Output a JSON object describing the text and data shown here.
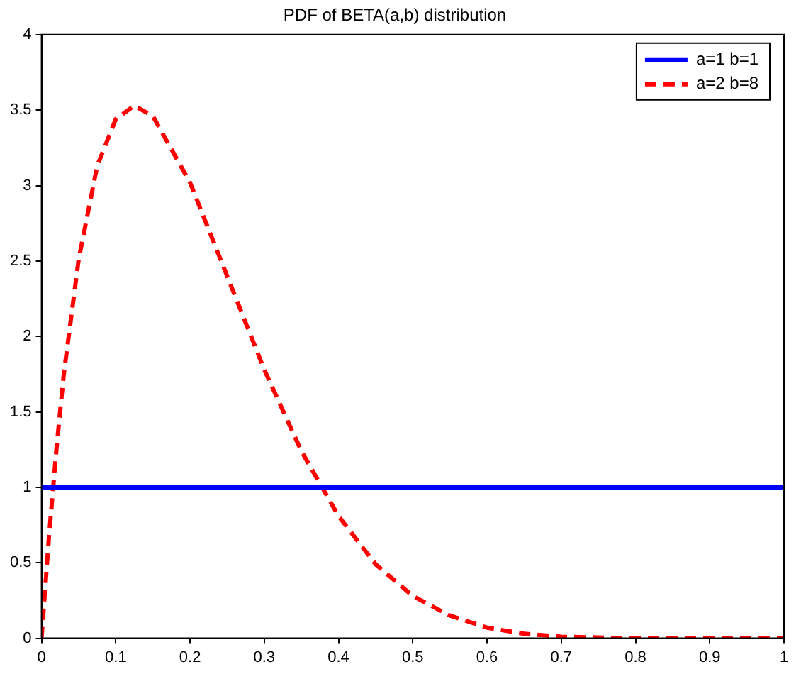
{
  "chart_data": {
    "type": "line",
    "title": "PDF of BETA(a,b) distribution",
    "series": [
      {
        "name": "a=1 b=1",
        "color": "#0000ff",
        "line_style": "solid",
        "x": [
          0,
          1
        ],
        "values": [
          1,
          1
        ]
      },
      {
        "name": "a=2 b=8",
        "color": "#ff0000",
        "line_style": "dashed",
        "x": [
          0,
          0.01,
          0.02,
          0.03,
          0.05,
          0.075,
          0.1,
          0.125,
          0.15,
          0.2,
          0.25,
          0.3,
          0.35,
          0.4,
          0.45,
          0.5,
          0.55,
          0.6,
          0.65,
          0.7,
          0.8,
          0.9,
          1
        ],
        "values": [
          0,
          0.67,
          1.25,
          1.75,
          2.51,
          3.13,
          3.44,
          3.53,
          3.46,
          3.02,
          2.4,
          1.78,
          1.24,
          0.81,
          0.49,
          0.28,
          0.15,
          0.07,
          0.03,
          0.01,
          0,
          0,
          0
        ]
      }
    ],
    "xlim": [
      0,
      1
    ],
    "xticks": [
      0,
      0.1,
      0.2,
      0.3,
      0.4,
      0.5,
      0.6,
      0.7,
      0.8,
      0.9,
      1
    ],
    "ylim": [
      0,
      4
    ],
    "yticks": [
      0,
      0.5,
      1,
      1.5,
      2,
      2.5,
      3,
      3.5,
      4
    ],
    "grid": false,
    "legend": "top right",
    "marker": "none"
  }
}
